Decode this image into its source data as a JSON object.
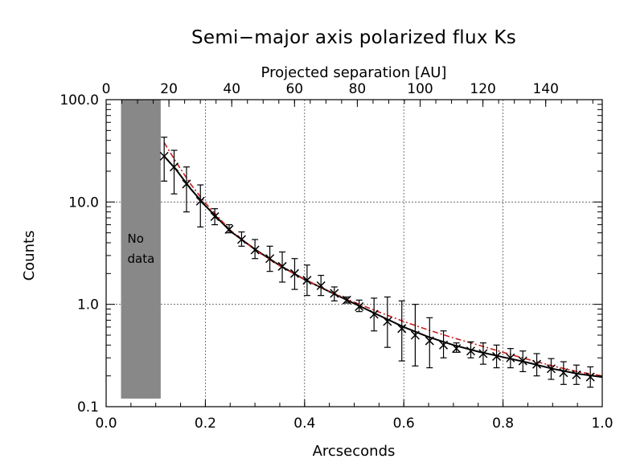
{
  "chart_data": {
    "type": "scatter",
    "title": "Semi−major axis polarized flux Ks",
    "xlabel": "Arcseconds",
    "ylabel": "Counts",
    "x2label": "Projected separation [AU]",
    "xlim": [
      0.0,
      1.0
    ],
    "ylim": [
      0.1,
      100.0
    ],
    "yscale": "log",
    "x2lim": [
      0,
      158
    ],
    "x_ticks": [
      "0.0",
      "0.2",
      "0.4",
      "0.6",
      "0.8",
      "1.0"
    ],
    "y_ticks": [
      "0.1",
      "1.0",
      "10.0",
      "100.0"
    ],
    "x2_ticks": [
      "0",
      "20",
      "40",
      "60",
      "80",
      "100",
      "120",
      "140"
    ],
    "grid": true,
    "no_data_region": {
      "x": [
        0.03,
        0.11
      ],
      "y": [
        0.12,
        100.0
      ],
      "label_line1": "No",
      "label_line2": "data",
      "color": "#888888"
    },
    "series": [
      {
        "kind": "points",
        "color": "#000000",
        "x": [
          0.117,
          0.137,
          0.162,
          0.19,
          0.219,
          0.248,
          0.273,
          0.3,
          0.33,
          0.355,
          0.38,
          0.405,
          0.433,
          0.46,
          0.485,
          0.51,
          0.54,
          0.567,
          0.596,
          0.623,
          0.652,
          0.68,
          0.706,
          0.735,
          0.76,
          0.787,
          0.815,
          0.84,
          0.868,
          0.897,
          0.922,
          0.948,
          0.976
        ],
        "y": [
          28,
          22,
          15,
          10.2,
          7.2,
          5.4,
          4.3,
          3.4,
          2.8,
          2.35,
          2.0,
          1.72,
          1.52,
          1.28,
          1.1,
          0.95,
          0.8,
          0.68,
          0.58,
          0.5,
          0.44,
          0.4,
          0.37,
          0.35,
          0.33,
          0.31,
          0.3,
          0.28,
          0.26,
          0.235,
          0.215,
          0.205,
          0.195
        ],
        "err_low": [
          12,
          10,
          7,
          4.5,
          1.2,
          0.4,
          0.6,
          0.6,
          0.7,
          0.7,
          0.6,
          0.5,
          0.3,
          0.2,
          0.07,
          0.1,
          0.25,
          0.3,
          0.3,
          0.25,
          0.2,
          0.1,
          0.03,
          0.05,
          0.07,
          0.07,
          0.06,
          0.06,
          0.06,
          0.05,
          0.05,
          0.04,
          0.04
        ],
        "err_high": [
          15,
          10,
          7,
          4.5,
          1.4,
          0.6,
          0.8,
          0.9,
          0.9,
          0.9,
          0.8,
          0.7,
          0.4,
          0.2,
          0.08,
          0.15,
          0.35,
          0.5,
          0.5,
          0.5,
          0.3,
          0.15,
          0.05,
          0.08,
          0.09,
          0.09,
          0.07,
          0.07,
          0.07,
          0.06,
          0.06,
          0.05,
          0.05
        ]
      },
      {
        "kind": "fit",
        "style": "solid",
        "color": "#000000",
        "x": [
          0.117,
          0.14,
          0.17,
          0.2,
          0.25,
          0.3,
          0.35,
          0.4,
          0.45,
          0.5,
          0.55,
          0.6,
          0.65,
          0.7,
          0.75,
          0.8,
          0.85,
          0.9,
          0.95,
          1.0
        ],
        "y": [
          28,
          21,
          13.5,
          9.2,
          5.2,
          3.45,
          2.4,
          1.75,
          1.33,
          1.02,
          0.78,
          0.6,
          0.48,
          0.4,
          0.345,
          0.305,
          0.27,
          0.235,
          0.21,
          0.195
        ]
      },
      {
        "kind": "fit",
        "style": "dash-dot",
        "color": "#c81e1e",
        "x": [
          0.117,
          0.14,
          0.17,
          0.2,
          0.25,
          0.3,
          0.35,
          0.4,
          0.45,
          0.5,
          0.55,
          0.6,
          0.65,
          0.7,
          0.75,
          0.8,
          0.85,
          0.9,
          0.95,
          1.0
        ],
        "y": [
          38,
          25,
          15,
          9.8,
          5.3,
          3.4,
          2.38,
          1.75,
          1.34,
          1.05,
          0.84,
          0.68,
          0.56,
          0.47,
          0.4,
          0.34,
          0.29,
          0.25,
          0.22,
          0.2
        ]
      }
    ]
  }
}
